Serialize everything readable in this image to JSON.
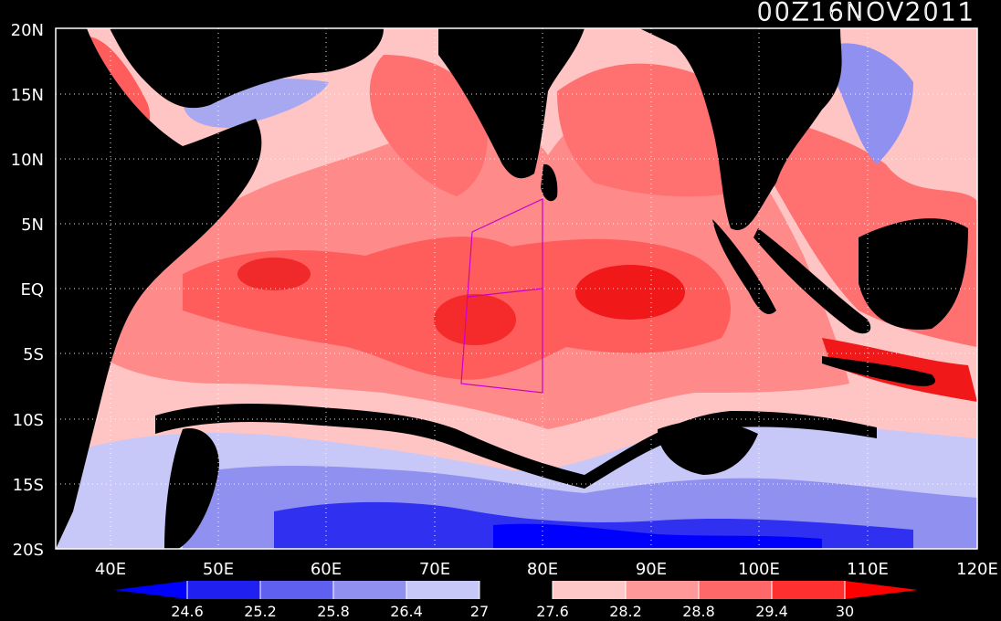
{
  "title": "00Z16NOV2011",
  "lat_labels": [
    "20N",
    "15N",
    "10N",
    "5N",
    "EQ",
    "5S",
    "10S",
    "15S",
    "20S"
  ],
  "lon_labels": [
    "40E",
    "50E",
    "60E",
    "70E",
    "80E",
    "90E",
    "100E",
    "110E",
    "120E"
  ],
  "colorbar": {
    "ticks": [
      "24.6",
      "25.2",
      "25.8",
      "26.4",
      "27",
      "27.6",
      "28.2",
      "28.8",
      "29.4",
      "30"
    ],
    "colors": [
      "#0000ff",
      "#2020f0",
      "#6060f0",
      "#9090f0",
      "#c8c8f8",
      "#000000",
      "#ffc8c8",
      "#ff9898",
      "#ff6868",
      "#ff3030",
      "#ff0000"
    ]
  },
  "colors": {
    "land": "#000000",
    "deep_warm": "#f01010",
    "warm": "#ff5050",
    "mid_warm": "#ff8080",
    "light_warm": "#ffc4c4",
    "cool_light": "#c8c8f8",
    "cool": "#7878e8",
    "cold": "#2020f0",
    "box_line": "#cc00cc"
  }
}
